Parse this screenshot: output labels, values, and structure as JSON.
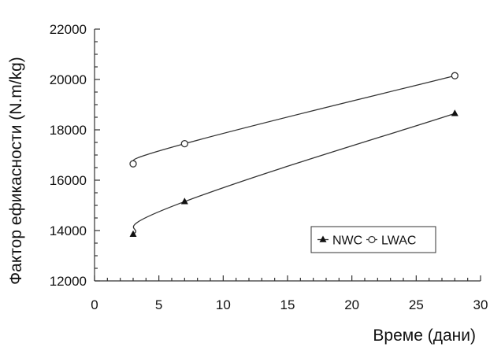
{
  "chart_data": {
    "type": "line",
    "title": "",
    "xlabel": "Време (дани)",
    "ylabel": "Фактор ефикасности (N.m/kg)",
    "xlim": [
      0,
      30
    ],
    "ylim": [
      12000,
      22000
    ],
    "x_ticks": [
      0,
      5,
      10,
      15,
      20,
      25,
      30
    ],
    "y_ticks": [
      12000,
      14000,
      16000,
      18000,
      20000,
      22000
    ],
    "grid": false,
    "legend_position": "bottom-right",
    "series": [
      {
        "name": "NWC",
        "marker": "filled-triangle",
        "color": "#111111",
        "x": [
          3,
          7,
          28
        ],
        "y": [
          13850,
          15150,
          18650
        ]
      },
      {
        "name": "LWAC",
        "marker": "open-circle",
        "color": "#333333",
        "x": [
          3,
          7,
          28
        ],
        "y": [
          16650,
          17450,
          20150
        ]
      }
    ]
  }
}
